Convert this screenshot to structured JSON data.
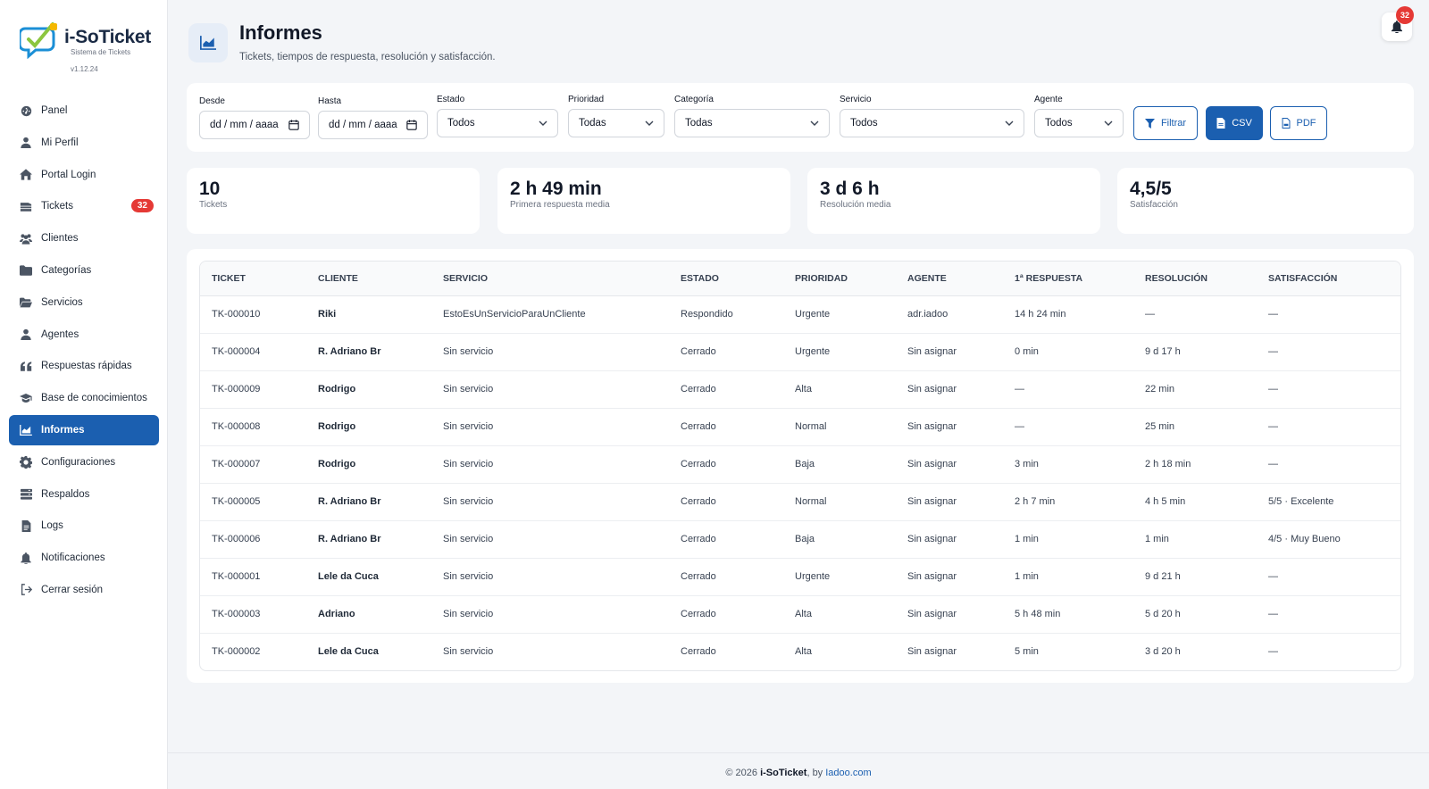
{
  "brand": {
    "name": "i-SoTicket",
    "subtitle": "Sistema de Tickets",
    "version": "v1.12.24"
  },
  "sidebar": {
    "items": [
      {
        "label": "Panel",
        "icon": "dashboard-icon"
      },
      {
        "label": "Mi Perfil",
        "icon": "user-icon"
      },
      {
        "label": "Portal Login",
        "icon": "home-icon"
      },
      {
        "label": "Tickets",
        "icon": "ticket-stack-icon",
        "count": "32"
      },
      {
        "label": "Clientes",
        "icon": "users-icon"
      },
      {
        "label": "Categorías",
        "icon": "folder-icon"
      },
      {
        "label": "Servicios",
        "icon": "folder-open-icon"
      },
      {
        "label": "Agentes",
        "icon": "agent-icon"
      },
      {
        "label": "Respuestas rápidas",
        "icon": "quote-icon"
      },
      {
        "label": "Base de conocimientos",
        "icon": "graduation-cap-icon"
      },
      {
        "label": "Informes",
        "icon": "chart-area-icon",
        "active": true
      },
      {
        "label": "Configuraciones",
        "icon": "gear-icon"
      },
      {
        "label": "Respaldos",
        "icon": "database-icon"
      },
      {
        "label": "Logs",
        "icon": "file-icon"
      },
      {
        "label": "Notificaciones",
        "icon": "bell-icon"
      },
      {
        "label": "Cerrar sesión",
        "icon": "logout-icon"
      }
    ]
  },
  "header": {
    "title": "Informes",
    "subtitle": "Tickets, tiempos de respuesta, resolución y satisfacción.",
    "notification_count": "32"
  },
  "filters": {
    "desde": {
      "label": "Desde",
      "value": "dd / mm / aaaa"
    },
    "hasta": {
      "label": "Hasta",
      "value": "dd / mm / aaaa"
    },
    "estado": {
      "label": "Estado",
      "value": "Todos"
    },
    "prioridad": {
      "label": "Prioridad",
      "value": "Todas"
    },
    "categoria": {
      "label": "Categoría",
      "value": "Todas"
    },
    "servicio": {
      "label": "Servicio",
      "value": "Todos"
    },
    "agente": {
      "label": "Agente",
      "value": "Todos"
    },
    "filter_label": "Filtrar",
    "csv_label": "CSV",
    "pdf_label": "PDF"
  },
  "stats": [
    {
      "value": "10",
      "label": "Tickets"
    },
    {
      "value": "2 h 49 min",
      "label": "Primera respuesta media"
    },
    {
      "value": "3 d 6 h",
      "label": "Resolución media"
    },
    {
      "value": "4,5/5",
      "label": "Satisfacción"
    }
  ],
  "table": {
    "columns": [
      "TICKET",
      "CLIENTE",
      "SERVICIO",
      "ESTADO",
      "PRIORIDAD",
      "AGENTE",
      "1ª RESPUESTA",
      "RESOLUCIÓN",
      "SATISFACCIÓN"
    ],
    "rows": [
      [
        "TK-000010",
        "Riki",
        "EstoEsUnServicioParaUnCliente",
        "Respondido",
        "Urgente",
        "adr.iadoo",
        "14 h 24 min",
        "—",
        "—"
      ],
      [
        "TK-000004",
        "R. Adriano Br",
        "Sin servicio",
        "Cerrado",
        "Urgente",
        "Sin asignar",
        "0 min",
        "9 d 17 h",
        "—"
      ],
      [
        "TK-000009",
        "Rodrigo",
        "Sin servicio",
        "Cerrado",
        "Alta",
        "Sin asignar",
        "—",
        "22 min",
        "—"
      ],
      [
        "TK-000008",
        "Rodrigo",
        "Sin servicio",
        "Cerrado",
        "Normal",
        "Sin asignar",
        "—",
        "25 min",
        "—"
      ],
      [
        "TK-000007",
        "Rodrigo",
        "Sin servicio",
        "Cerrado",
        "Baja",
        "Sin asignar",
        "3 min",
        "2 h 18 min",
        "—"
      ],
      [
        "TK-000005",
        "R. Adriano Br",
        "Sin servicio",
        "Cerrado",
        "Normal",
        "Sin asignar",
        "2 h 7 min",
        "4 h 5 min",
        "5/5 · Excelente"
      ],
      [
        "TK-000006",
        "R. Adriano Br",
        "Sin servicio",
        "Cerrado",
        "Baja",
        "Sin asignar",
        "1 min",
        "1 min",
        "4/5 · Muy Bueno"
      ],
      [
        "TK-000001",
        "Lele da Cuca",
        "Sin servicio",
        "Cerrado",
        "Urgente",
        "Sin asignar",
        "1 min",
        "9 d 21 h",
        "—"
      ],
      [
        "TK-000003",
        "Adriano",
        "Sin servicio",
        "Cerrado",
        "Alta",
        "Sin asignar",
        "5 h 48 min",
        "5 d 20 h",
        "—"
      ],
      [
        "TK-000002",
        "Lele da Cuca",
        "Sin servicio",
        "Cerrado",
        "Alta",
        "Sin asignar",
        "5 min",
        "3 d 20 h",
        "—"
      ]
    ]
  },
  "footer": {
    "copyright": "© 2026",
    "product": "i-SoTicket",
    "by": ", by",
    "link": "Iadoo.com"
  }
}
